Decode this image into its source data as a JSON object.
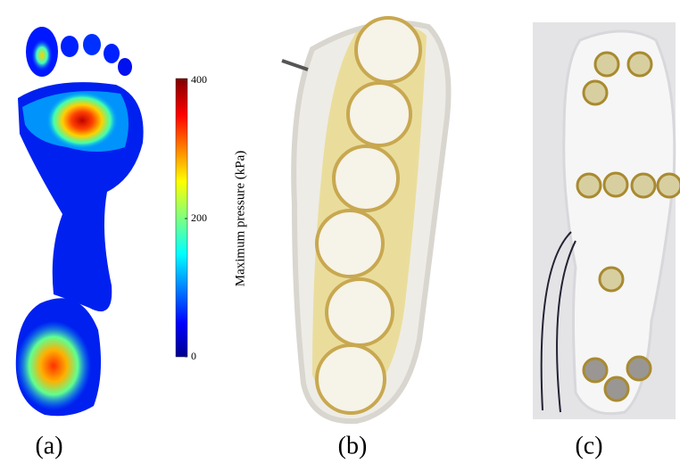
{
  "colorbar": {
    "label": "Maximum pressure (kPa)",
    "lim": [
      0,
      400
    ],
    "ticks": [
      0,
      200,
      400
    ]
  },
  "panels": [
    {
      "label": "(a)"
    },
    {
      "label": "(b)"
    },
    {
      "label": "(c)"
    }
  ]
}
